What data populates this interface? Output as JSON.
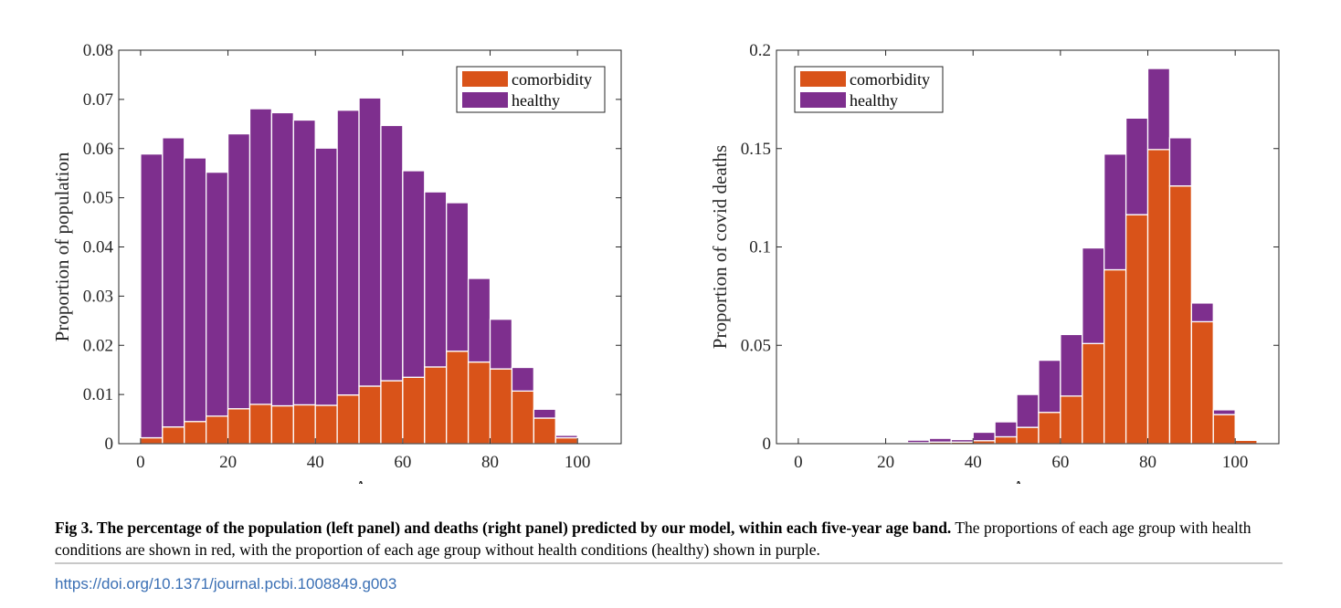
{
  "chart_data": [
    {
      "type": "bar",
      "stacked": true,
      "panel": "left",
      "xlabel": "Age",
      "ylabel": "Proportion of population",
      "xlim": [
        -5,
        110
      ],
      "ylim": [
        0,
        0.08
      ],
      "xticks": [
        0,
        20,
        40,
        60,
        80,
        100
      ],
      "yticks": [
        0,
        0.01,
        0.02,
        0.03,
        0.04,
        0.05,
        0.06,
        0.07,
        0.08
      ],
      "ytick_labels": [
        "0",
        "0.01",
        "0.02",
        "0.03",
        "0.04",
        "0.05",
        "0.06",
        "0.07",
        "0.08"
      ],
      "xtick_labels": [
        "0",
        "20",
        "40",
        "60",
        "80",
        "100"
      ],
      "legend_position": "top-right",
      "x": [
        2.5,
        7.5,
        12.5,
        17.5,
        22.5,
        27.5,
        32.5,
        37.5,
        42.5,
        47.5,
        52.5,
        57.5,
        62.5,
        67.5,
        72.5,
        77.5,
        82.5,
        87.5,
        92.5,
        97.5
      ],
      "series": [
        {
          "name": "comorbidity",
          "color": "#d95319",
          "values": [
            0.0012,
            0.0034,
            0.0045,
            0.0056,
            0.0071,
            0.008,
            0.0077,
            0.0079,
            0.0078,
            0.0099,
            0.0117,
            0.0128,
            0.0135,
            0.0156,
            0.0188,
            0.0166,
            0.0152,
            0.0107,
            0.0052,
            0.0012
          ]
        },
        {
          "name": "healthy",
          "color": "#7e2f8e",
          "values": [
            0.0577,
            0.0588,
            0.0536,
            0.0496,
            0.0559,
            0.0601,
            0.0596,
            0.0579,
            0.0523,
            0.0579,
            0.0586,
            0.0519,
            0.042,
            0.0356,
            0.0302,
            0.017,
            0.0101,
            0.0048,
            0.0018,
            0.0005
          ]
        }
      ]
    },
    {
      "type": "bar",
      "stacked": true,
      "panel": "right",
      "xlabel": "Age",
      "ylabel": "Proportion of covid deaths",
      "xlim": [
        -5,
        110
      ],
      "ylim": [
        0,
        0.2
      ],
      "xticks": [
        0,
        20,
        40,
        60,
        80,
        100
      ],
      "yticks": [
        0,
        0.05,
        0.1,
        0.15,
        0.2
      ],
      "ytick_labels": [
        "0",
        "0.05",
        "0.1",
        "0.15",
        "0.2"
      ],
      "xtick_labels": [
        "0",
        "20",
        "40",
        "60",
        "80",
        "100"
      ],
      "legend_position": "top-left",
      "x": [
        2.5,
        7.5,
        12.5,
        17.5,
        22.5,
        27.5,
        32.5,
        37.5,
        42.5,
        47.5,
        52.5,
        57.5,
        62.5,
        67.5,
        72.5,
        77.5,
        82.5,
        87.5,
        92.5,
        97.5,
        102.5
      ],
      "series": [
        {
          "name": "comorbidity",
          "color": "#d95319",
          "values": [
            0,
            0,
            0,
            0,
            0.0003,
            0.0005,
            0.0008,
            0.0008,
            0.0015,
            0.0035,
            0.0083,
            0.0159,
            0.0242,
            0.0509,
            0.0884,
            0.1164,
            0.1495,
            0.131,
            0.062,
            0.0148,
            0.0017
          ]
        },
        {
          "name": "healthy",
          "color": "#7e2f8e",
          "values": [
            0,
            0,
            0,
            0,
            0.0004,
            0.0013,
            0.0019,
            0.0013,
            0.0043,
            0.0076,
            0.0167,
            0.0265,
            0.0313,
            0.0486,
            0.0588,
            0.0491,
            0.0412,
            0.0245,
            0.0095,
            0.0024,
            0
          ]
        }
      ]
    }
  ],
  "caption": {
    "lead": "Fig 3. The percentage of the population (left panel) and deaths (right panel) predicted by our model, within each five-year age band.",
    "body": " The proportions of each age group with health conditions are shown in red, with the proportion of each age group without health conditions (healthy) shown in purple."
  },
  "doi": "https://doi.org/10.1371/journal.pcbi.1008849.g003"
}
